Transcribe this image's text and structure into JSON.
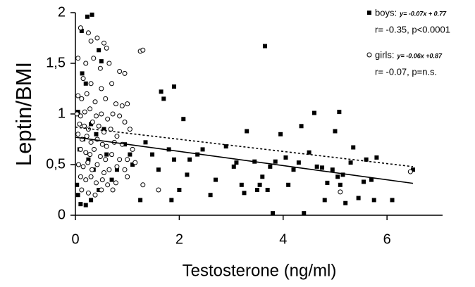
{
  "chart_data": {
    "type": "scatter",
    "xlabel": "Testosterone (ng/ml)",
    "ylabel": "Leptin/BMI",
    "xlim": [
      0,
      7.07
    ],
    "ylim": [
      0,
      2
    ],
    "xticks": [
      0,
      2,
      4,
      6
    ],
    "yticks": [
      0,
      {
        "value": 0.5,
        "label": "0,5"
      },
      1,
      {
        "value": 1.5,
        "label": "1,5"
      },
      2
    ],
    "grid": false,
    "legend": "top-right",
    "series": [
      {
        "name": "boys:",
        "equation": "y= -0.07x + 0.77",
        "stats": "r= -0.35, p<0.0001",
        "marker": "square",
        "color": "#000000",
        "fit": {
          "slope": -0.07,
          "intercept": 0.77,
          "x_range": [
            0,
            6.5
          ],
          "dashed": false
        },
        "x": [
          0.23,
          0.32,
          0.12,
          0.45,
          0.5,
          0.13,
          0.2,
          0.05,
          0.08,
          0.03,
          0.05,
          0.1,
          0.2,
          0.3,
          0.45,
          0.6,
          0.8,
          0.95,
          1.05,
          1.1,
          1.35,
          1.48,
          1.6,
          1.65,
          1.7,
          1.9,
          1.85,
          1.8,
          2.0,
          2.08,
          2.15,
          2.2,
          2.35,
          2.45,
          2.6,
          2.7,
          2.9,
          3.05,
          3.1,
          3.2,
          3.25,
          3.3,
          3.45,
          3.5,
          3.55,
          3.6,
          3.65,
          3.7,
          3.75,
          3.8,
          3.85,
          3.95,
          4.05,
          4.1,
          4.3,
          4.35,
          4.4,
          4.5,
          4.6,
          4.65,
          4.75,
          4.8,
          4.85,
          4.95,
          5.0,
          5.05,
          5.08,
          5.15,
          5.2,
          5.3,
          5.35,
          5.45,
          5.55,
          5.6,
          5.7,
          5.75,
          5.8,
          6.1,
          6.5,
          0.4,
          0.3,
          0.15,
          0.25,
          0.35,
          0.55,
          0.7,
          1.25,
          1.9,
          4.2,
          5.1
        ],
        "values": [
          1.96,
          1.98,
          1.82,
          1.63,
          1.52,
          1.4,
          1.3,
          1.02,
          0.65,
          0.3,
          0.2,
          0.11,
          0.1,
          0.15,
          0.25,
          0.6,
          0.45,
          0.7,
          0.6,
          0.5,
          0.72,
          0.6,
          0.45,
          1.22,
          1.15,
          1.27,
          0.15,
          0.65,
          0.25,
          0.95,
          0.4,
          0.55,
          0.6,
          0.65,
          0.2,
          0.35,
          0.68,
          0.48,
          0.52,
          0.3,
          0.22,
          0.83,
          0.53,
          0.25,
          0.3,
          0.38,
          1.67,
          0.25,
          0.48,
          0.02,
          0.53,
          0.8,
          0.57,
          0.3,
          0.52,
          0.88,
          0.02,
          0.62,
          1.01,
          0.48,
          0.47,
          0.15,
          0.32,
          0.45,
          0.83,
          0.38,
          1.02,
          0.4,
          0.12,
          0.52,
          0.67,
          0.17,
          0.33,
          0.55,
          0.35,
          0.15,
          0.57,
          0.15,
          0.45,
          0.8,
          0.9,
          0.75,
          0.55,
          0.45,
          0.85,
          0.35,
          0.15,
          0.55,
          0.45,
          0.3
        ]
      },
      {
        "name": "girls:",
        "equation": "y= -0.06x +0.87",
        "stats": "r= -0.07, p=n.s.",
        "marker": "circle",
        "color": "#000000",
        "fit": {
          "slope": -0.06,
          "intercept": 0.87,
          "x_range": [
            0,
            6.5
          ],
          "dashed": true
        },
        "x": [
          0.1,
          0.25,
          0.3,
          0.42,
          0.55,
          0.6,
          0.05,
          0.2,
          0.35,
          0.48,
          0.65,
          1.25,
          1.3,
          0.85,
          0.95,
          0.15,
          0.3,
          0.5,
          0.7,
          0.05,
          0.12,
          0.22,
          0.38,
          0.58,
          0.78,
          0.9,
          1.0,
          0.03,
          0.1,
          0.18,
          0.28,
          0.4,
          0.5,
          0.62,
          0.72,
          0.85,
          0.95,
          0.08,
          0.17,
          0.25,
          0.33,
          0.45,
          0.55,
          0.68,
          0.8,
          1.05,
          0.05,
          0.13,
          0.22,
          0.3,
          0.42,
          0.52,
          0.6,
          0.75,
          0.9,
          1.1,
          0.1,
          0.2,
          0.28,
          0.36,
          0.48,
          0.58,
          0.7,
          0.85,
          1.0,
          0.06,
          0.15,
          0.24,
          0.32,
          0.42,
          0.55,
          0.65,
          0.8,
          0.95,
          1.15,
          0.1,
          0.2,
          0.3,
          0.4,
          0.52,
          0.62,
          0.78,
          1.0,
          1.3,
          0.12,
          0.25,
          0.38,
          0.5,
          0.72,
          1.6,
          5.1,
          6.45
        ],
        "values": [
          1.85,
          1.8,
          1.72,
          1.75,
          1.7,
          1.65,
          1.55,
          1.5,
          1.55,
          1.45,
          1.5,
          1.62,
          1.63,
          1.42,
          1.4,
          1.35,
          1.3,
          1.25,
          1.3,
          1.18,
          1.15,
          1.2,
          1.12,
          1.15,
          1.1,
          1.08,
          1.1,
          1.0,
          0.98,
          1.02,
          1.05,
          0.98,
          1.0,
          0.95,
          1.0,
          0.98,
          0.92,
          0.9,
          0.88,
          0.85,
          0.92,
          0.88,
          0.82,
          0.85,
          0.78,
          0.85,
          0.8,
          0.75,
          0.78,
          0.72,
          0.75,
          0.7,
          0.68,
          0.72,
          0.7,
          0.65,
          0.65,
          0.62,
          0.6,
          0.65,
          0.58,
          0.55,
          0.6,
          0.55,
          0.55,
          0.5,
          0.48,
          0.52,
          0.45,
          0.5,
          0.42,
          0.45,
          0.48,
          0.45,
          0.52,
          0.38,
          0.35,
          0.38,
          0.32,
          0.35,
          0.3,
          0.32,
          0.38,
          0.3,
          0.25,
          0.22,
          0.2,
          0.25,
          0.25,
          0.25,
          0.23,
          0.43
        ]
      }
    ]
  }
}
